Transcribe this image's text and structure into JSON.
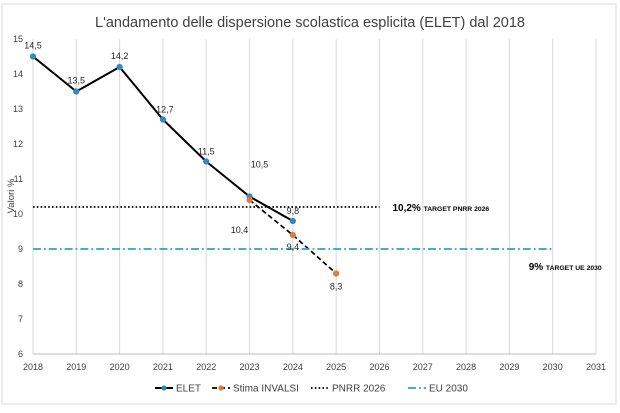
{
  "chart_data": {
    "type": "line",
    "title": "L'andamento delle dispersione scolastica esplicita (ELET) dal 2018",
    "ylabel": "Valori %",
    "xlabel": "",
    "xlim": [
      2018,
      2031
    ],
    "ylim": [
      6,
      15
    ],
    "x_ticks": [
      "2018",
      "2019",
      "2020",
      "2021",
      "2022",
      "2023",
      "2024",
      "2025",
      "2026",
      "2027",
      "2028",
      "2029",
      "2030",
      "2031"
    ],
    "y_ticks": [
      "6",
      "7",
      "8",
      "9",
      "10",
      "11",
      "12",
      "13",
      "14",
      "15"
    ],
    "grid": "vertical",
    "legend_position": "bottom",
    "series": [
      {
        "name": "ELET",
        "style": "solid",
        "color": "#000000",
        "marker_color": "#2e8bc0",
        "x": [
          2018,
          2019,
          2020,
          2021,
          2022,
          2023,
          2024
        ],
        "y": [
          14.5,
          13.5,
          14.2,
          12.7,
          11.5,
          10.5,
          9.8
        ],
        "labels": [
          "14,5",
          "13,5",
          "14,2",
          "12,7",
          "11,5",
          "10,5",
          "9,8"
        ]
      },
      {
        "name": "Stima INVALSI",
        "style": "dashed",
        "color": "#000000",
        "marker_color": "#e07b39",
        "x": [
          2023,
          2024,
          2025
        ],
        "y": [
          10.4,
          9.4,
          8.3
        ],
        "labels": [
          "10,4",
          "9,4",
          "8,3"
        ]
      },
      {
        "name": "PNRR 2026",
        "style": "dotted",
        "color": "#000000",
        "x": [
          2018,
          2026
        ],
        "y": [
          10.2,
          10.2
        ],
        "annotation_value": "10,2%",
        "annotation_text": "TARGET PNRR 2026"
      },
      {
        "name": "EU 2030",
        "style": "dashdot",
        "color": "#2aa0d0",
        "x": [
          2018,
          2030
        ],
        "y": [
          9,
          9
        ],
        "annotation_value": "9%",
        "annotation_text": "TARGET UE 2030"
      }
    ]
  }
}
